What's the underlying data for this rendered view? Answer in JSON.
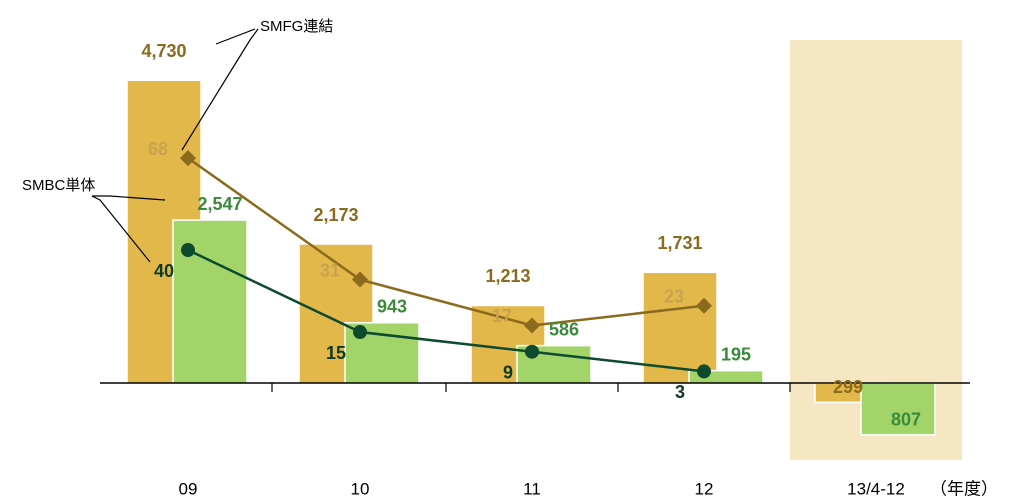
{
  "chart_data": {
    "type": "bar",
    "categories": [
      "09",
      "10",
      "11",
      "12",
      "13/4-12"
    ],
    "x_unit": "（年度）",
    "ylim": [
      -1200,
      5000
    ],
    "y2lim": [
      -24,
      97
    ],
    "series": [
      {
        "name": "SMFG連結",
        "type": "bar",
        "color": "#e3b84a",
        "label_color": "#8b6a1e",
        "values": [
          4730,
          2173,
          1213,
          1731,
          -299
        ],
        "value_labels": [
          "4,730",
          "2,173",
          "1,213",
          "1,731",
          "299"
        ]
      },
      {
        "name": "SMBC単体",
        "type": "bar",
        "color": "#a3d46a",
        "label_color": "#3a8a3a",
        "values": [
          2547,
          943,
          586,
          195,
          -807
        ],
        "value_labels": [
          "2,547",
          "943",
          "586",
          "195",
          "807"
        ]
      },
      {
        "type": "line",
        "axis": "y2",
        "marker": "diamond",
        "color": "#8b6a1e",
        "label_color": "#c9a24e",
        "values": [
          68,
          31,
          17,
          23,
          null
        ]
      },
      {
        "type": "line",
        "axis": "y2",
        "marker": "circle",
        "color": "#0d4a2e",
        "label_color": "#0d3a22",
        "values": [
          40,
          15,
          9,
          3,
          null
        ]
      }
    ]
  }
}
